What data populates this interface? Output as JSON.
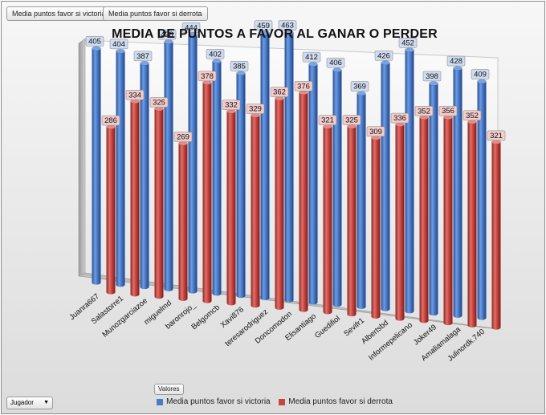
{
  "filter_buttons": {
    "victory_label": "Media puntos favor si victoria",
    "defeat_label": "Media puntos favor si derrota"
  },
  "values_button": "Valores",
  "axis_button": "Jugador",
  "icons": {
    "dropdown": "caret-down-icon"
  },
  "colors": {
    "victory_series": "#4a7bc8",
    "defeat_series": "#c8453f",
    "victory_label_bg": "#cfdcf0",
    "defeat_label_bg": "#f2cccb"
  },
  "chart_data": {
    "type": "bar",
    "style": "3d-cylinder",
    "title": "MEDIA DE PUNTOS A FAVOR AL GANAR O PERDER",
    "xlabel": "",
    "ylabel": "",
    "ylim": [
      0,
      500
    ],
    "legend_position": "bottom",
    "categories": [
      "Juanra667",
      "Salastorre1",
      "Munozgarciazoe",
      "miguelmd",
      "baronrojo_",
      "Belgomcb",
      "Xavi876",
      "teresarodriguez",
      "Doncomodon",
      "Elisantiago",
      "Guedifiol",
      "Sevifr1",
      "Albertsbd",
      "Informepelicano",
      "Joker49",
      "Amaliamalaga",
      "Julinordk.740"
    ],
    "series": [
      {
        "name": "Media puntos favor si victoria",
        "values": [
          405,
          404,
          387,
          428,
          444,
          402,
          385,
          459,
          463,
          412,
          406,
          369,
          426,
          452,
          398,
          428,
          409
        ]
      },
      {
        "name": "Media puntos favor si derrota",
        "values": [
          286,
          334,
          325,
          269,
          378,
          332,
          329,
          362,
          376,
          321,
          325,
          309,
          336,
          352,
          356,
          352,
          321
        ]
      }
    ]
  }
}
